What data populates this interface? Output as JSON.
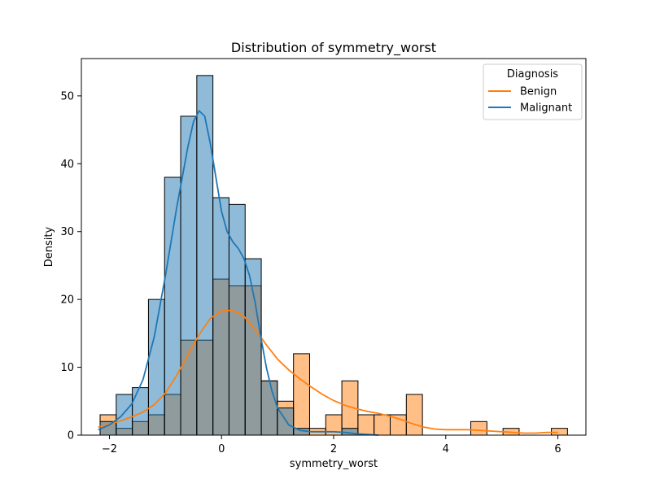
{
  "chart_data": {
    "type": "histogram",
    "title": "Distribution of symmetry_worst",
    "xlabel": "symmetry_worst",
    "ylabel": "Density",
    "xlim": [
      -2.5,
      6.5
    ],
    "ylim": [
      0,
      55.5
    ],
    "xticks": [
      -2,
      0,
      2,
      4,
      6
    ],
    "yticks": [
      0,
      10,
      20,
      30,
      40,
      50
    ],
    "bin_start": -2.166,
    "bin_width": 0.2875,
    "legend": {
      "title": "Diagnosis",
      "position": "top-right",
      "entries": [
        {
          "label": "Benign",
          "color": "#ff7f0e"
        },
        {
          "label": "Malignant",
          "color": "#1f77b4"
        }
      ]
    },
    "series": [
      {
        "name": "Benign",
        "color": "#ff7f0e",
        "counts": [
          3,
          1,
          2,
          3,
          6,
          14,
          14,
          23,
          22,
          22,
          8,
          5,
          12,
          1,
          3,
          8,
          3,
          3,
          3,
          6,
          0,
          0,
          0,
          2,
          0,
          1,
          0,
          0,
          1
        ],
        "kde": [
          [
            -2.2,
            1.2
          ],
          [
            -2.0,
            1.6
          ],
          [
            -1.8,
            2.1
          ],
          [
            -1.6,
            2.7
          ],
          [
            -1.4,
            3.4
          ],
          [
            -1.2,
            4.5
          ],
          [
            -1.0,
            6.2
          ],
          [
            -0.8,
            8.8
          ],
          [
            -0.6,
            11.8
          ],
          [
            -0.4,
            14.8
          ],
          [
            -0.2,
            17.2
          ],
          [
            0.0,
            18.3
          ],
          [
            0.2,
            18.4
          ],
          [
            0.4,
            17.5
          ],
          [
            0.6,
            15.6
          ],
          [
            0.8,
            13.3
          ],
          [
            1.0,
            11.2
          ],
          [
            1.2,
            9.6
          ],
          [
            1.4,
            8.3
          ],
          [
            1.6,
            7.1
          ],
          [
            1.8,
            6.0
          ],
          [
            2.0,
            5.1
          ],
          [
            2.2,
            4.4
          ],
          [
            2.4,
            3.9
          ],
          [
            2.6,
            3.5
          ],
          [
            2.8,
            3.2
          ],
          [
            3.0,
            2.8
          ],
          [
            3.2,
            2.3
          ],
          [
            3.4,
            1.7
          ],
          [
            3.6,
            1.2
          ],
          [
            3.8,
            0.9
          ],
          [
            4.0,
            0.8
          ],
          [
            4.2,
            0.8
          ],
          [
            4.4,
            0.8
          ],
          [
            4.6,
            0.7
          ],
          [
            4.8,
            0.6
          ],
          [
            5.0,
            0.5
          ],
          [
            5.2,
            0.4
          ],
          [
            5.4,
            0.3
          ],
          [
            5.6,
            0.3
          ],
          [
            5.8,
            0.4
          ],
          [
            6.0,
            0.4
          ]
        ]
      },
      {
        "name": "Malignant",
        "color": "#1f77b4",
        "counts": [
          2,
          6,
          7,
          20,
          38,
          47,
          53,
          35,
          34,
          26,
          8,
          4,
          1,
          0,
          0,
          1,
          0,
          0,
          0,
          0,
          0,
          0,
          0,
          0,
          0,
          0,
          0,
          0,
          0
        ],
        "kde": [
          [
            -2.2,
            0.8
          ],
          [
            -2.0,
            1.5
          ],
          [
            -1.8,
            2.7
          ],
          [
            -1.6,
            4.6
          ],
          [
            -1.4,
            8.2
          ],
          [
            -1.2,
            14.5
          ],
          [
            -1.0,
            23.5
          ],
          [
            -0.8,
            33.5
          ],
          [
            -0.6,
            42.5
          ],
          [
            -0.5,
            46.2
          ],
          [
            -0.4,
            47.8
          ],
          [
            -0.3,
            47.0
          ],
          [
            -0.2,
            43.0
          ],
          [
            -0.1,
            38.0
          ],
          [
            0.0,
            33.0
          ],
          [
            0.1,
            30.0
          ],
          [
            0.2,
            28.5
          ],
          [
            0.3,
            27.5
          ],
          [
            0.4,
            26.0
          ],
          [
            0.5,
            23.5
          ],
          [
            0.6,
            19.5
          ],
          [
            0.7,
            14.5
          ],
          [
            0.8,
            10.0
          ],
          [
            0.9,
            6.5
          ],
          [
            1.0,
            4.0
          ],
          [
            1.2,
            1.5
          ],
          [
            1.4,
            0.7
          ],
          [
            1.6,
            0.5
          ],
          [
            1.8,
            0.5
          ],
          [
            2.0,
            0.5
          ],
          [
            2.2,
            0.4
          ],
          [
            2.4,
            0.2
          ],
          [
            2.6,
            0.1
          ],
          [
            2.8,
            0.0
          ]
        ]
      }
    ]
  }
}
